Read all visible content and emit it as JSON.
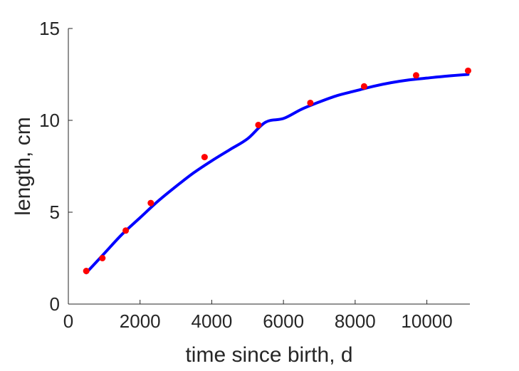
{
  "chart_data": {
    "type": "scatter",
    "title": "",
    "xlabel": "time since birth, d",
    "ylabel": "length, cm",
    "xlim": [
      0,
      11200
    ],
    "ylim": [
      0,
      15
    ],
    "xticks": [
      0,
      2000,
      4000,
      6000,
      8000,
      10000
    ],
    "yticks": [
      0,
      5,
      10,
      15
    ],
    "grid": false,
    "legend": "none",
    "box": "left-bottom",
    "series": [
      {
        "type": "scatter",
        "color": "#ff0000",
        "x": [
          500,
          950,
          1600,
          2300,
          3800,
          5300,
          6750,
          8250,
          9700,
          11150
        ],
        "y": [
          1.8,
          2.5,
          4.0,
          5.5,
          8.0,
          9.75,
          10.95,
          11.85,
          12.45,
          12.7
        ]
      },
      {
        "type": "line",
        "color": "#0000ff",
        "x": [
          500,
          1000,
          1500,
          2000,
          2500,
          3000,
          3500,
          4000,
          4500,
          5000,
          5500,
          6000,
          6500,
          7000,
          7500,
          8000,
          8500,
          9000,
          9500,
          10000,
          10500,
          11150
        ],
        "y": [
          1.7,
          2.75,
          3.8,
          4.7,
          5.6,
          6.4,
          7.15,
          7.8,
          8.4,
          9.0,
          9.9,
          10.1,
          10.6,
          11.0,
          11.35,
          11.6,
          11.85,
          12.05,
          12.2,
          12.3,
          12.4,
          12.5
        ]
      }
    ]
  }
}
